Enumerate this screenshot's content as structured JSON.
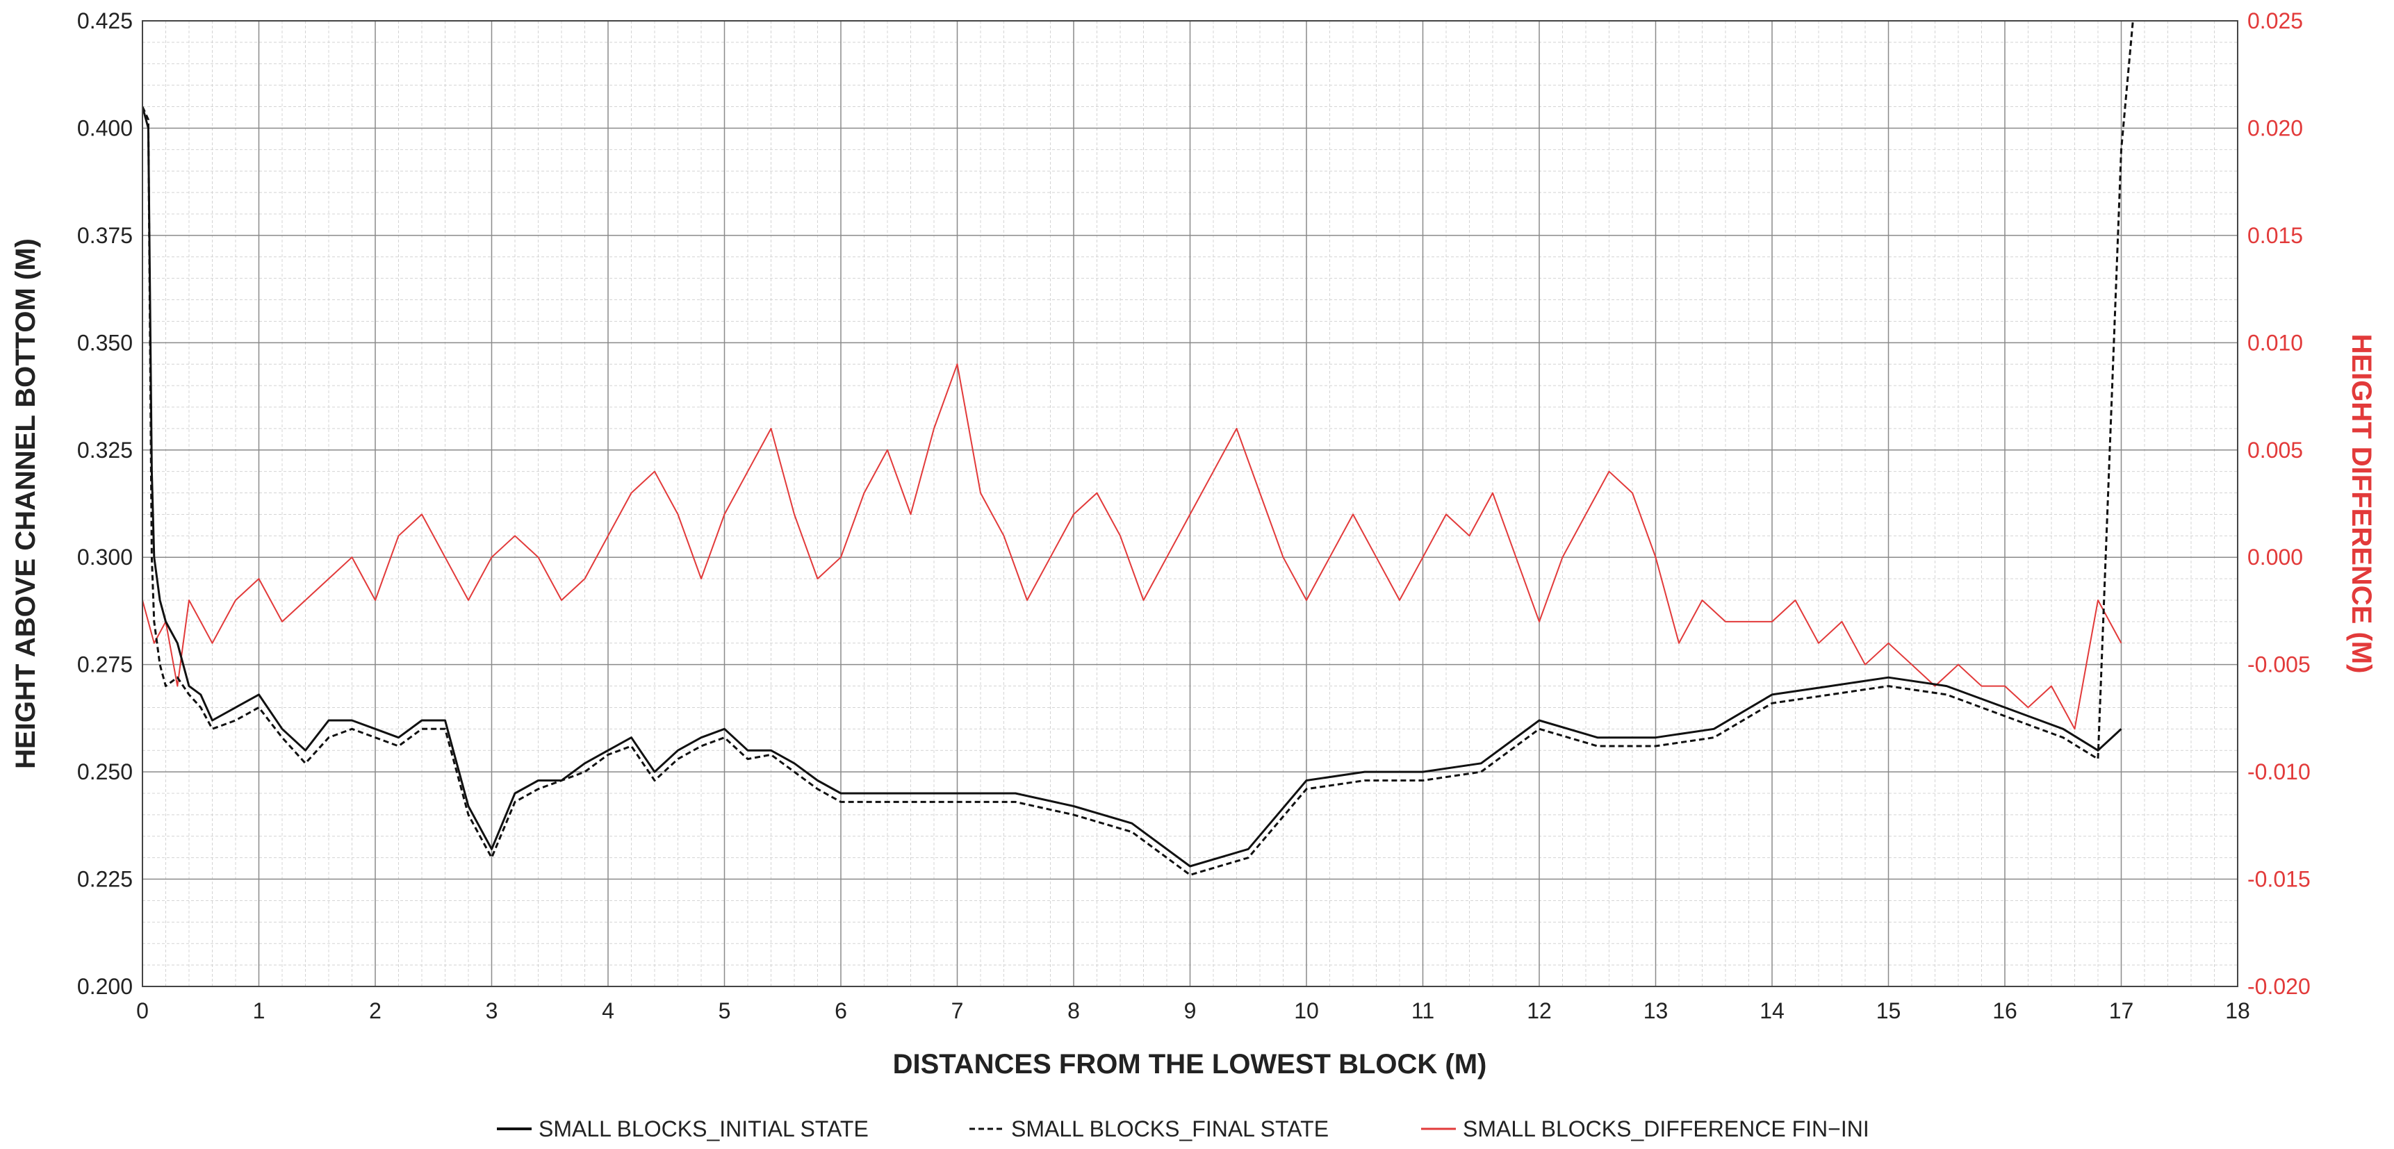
{
  "chart_data": {
    "type": "line",
    "xlabel": "DISTANCES FROM THE LOWEST BLOCK (M)",
    "ylabel": "HEIGHT ABOVE CHANNEL BOTTOM (M)",
    "y2label": "HEIGHT DIFFERENCE (M)",
    "xlim": [
      0,
      18
    ],
    "ylim": [
      0.2,
      0.425
    ],
    "y2lim": [
      -0.02,
      0.025
    ],
    "x_ticks": [
      "0",
      "1",
      "2",
      "3",
      "4",
      "5",
      "6",
      "7",
      "8",
      "9",
      "10",
      "11",
      "12",
      "13",
      "14",
      "15",
      "16",
      "17",
      "18"
    ],
    "y_ticks": [
      "0.200",
      "0.225",
      "0.250",
      "0.275",
      "0.300",
      "0.325",
      "0.350",
      "0.375",
      "0.400",
      "0.425"
    ],
    "y2_ticks": [
      "-0.020",
      "-0.015",
      "-0.010",
      "-0.005",
      "0.000",
      "0.005",
      "0.010",
      "0.015",
      "0.020",
      "0.025"
    ],
    "grid": true,
    "legend_position": "bottom",
    "series": [
      {
        "name": "SMALL BLOCKS_INITIAL STATE",
        "axis": "left",
        "style": "solid",
        "color": "#111111",
        "x": [
          0,
          0.05,
          0.08,
          0.1,
          0.15,
          0.2,
          0.3,
          0.4,
          0.5,
          0.6,
          0.8,
          1.0,
          1.2,
          1.4,
          1.6,
          1.8,
          2.0,
          2.2,
          2.4,
          2.6,
          2.8,
          3.0,
          3.2,
          3.4,
          3.6,
          3.8,
          4.0,
          4.2,
          4.4,
          4.6,
          4.8,
          5.0,
          5.2,
          5.4,
          5.6,
          5.8,
          6.0,
          6.5,
          7.0,
          7.5,
          8.0,
          8.5,
          9.0,
          9.5,
          10.0,
          10.5,
          11.0,
          11.5,
          12.0,
          12.5,
          13.0,
          13.5,
          14.0,
          14.5,
          15.0,
          15.5,
          16.0,
          16.5,
          16.8,
          17.0
        ],
        "y": [
          0.405,
          0.4,
          0.32,
          0.3,
          0.29,
          0.285,
          0.28,
          0.27,
          0.268,
          0.262,
          0.265,
          0.268,
          0.26,
          0.255,
          0.262,
          0.262,
          0.26,
          0.258,
          0.262,
          0.262,
          0.242,
          0.232,
          0.245,
          0.248,
          0.248,
          0.252,
          0.255,
          0.258,
          0.25,
          0.255,
          0.258,
          0.26,
          0.255,
          0.255,
          0.252,
          0.248,
          0.245,
          0.245,
          0.245,
          0.245,
          0.242,
          0.238,
          0.228,
          0.232,
          0.248,
          0.25,
          0.25,
          0.252,
          0.262,
          0.258,
          0.258,
          0.26,
          0.268,
          0.27,
          0.272,
          0.27,
          0.265,
          0.26,
          0.255,
          0.26
        ]
      },
      {
        "name": "SMALL BLOCKS_FINAL STATE",
        "axis": "left",
        "style": "dashed",
        "color": "#111111",
        "x": [
          0,
          0.05,
          0.08,
          0.1,
          0.15,
          0.2,
          0.3,
          0.4,
          0.5,
          0.6,
          0.8,
          1.0,
          1.2,
          1.4,
          1.6,
          1.8,
          2.0,
          2.2,
          2.4,
          2.6,
          2.8,
          3.0,
          3.2,
          3.4,
          3.6,
          3.8,
          4.0,
          4.2,
          4.4,
          4.6,
          4.8,
          5.0,
          5.2,
          5.4,
          5.6,
          5.8,
          6.0,
          6.5,
          7.0,
          7.5,
          8.0,
          8.5,
          9.0,
          9.5,
          10.0,
          10.5,
          11.0,
          11.5,
          12.0,
          12.5,
          13.0,
          13.5,
          14.0,
          14.5,
          15.0,
          15.5,
          16.0,
          16.5,
          16.8,
          17.0,
          17.1
        ],
        "y": [
          0.405,
          0.402,
          0.3,
          0.285,
          0.275,
          0.27,
          0.272,
          0.268,
          0.265,
          0.26,
          0.262,
          0.265,
          0.258,
          0.252,
          0.258,
          0.26,
          0.258,
          0.256,
          0.26,
          0.26,
          0.24,
          0.23,
          0.243,
          0.246,
          0.248,
          0.25,
          0.254,
          0.256,
          0.248,
          0.253,
          0.256,
          0.258,
          0.253,
          0.254,
          0.25,
          0.246,
          0.243,
          0.243,
          0.243,
          0.243,
          0.24,
          0.236,
          0.226,
          0.23,
          0.246,
          0.248,
          0.248,
          0.25,
          0.26,
          0.256,
          0.256,
          0.258,
          0.266,
          0.268,
          0.27,
          0.268,
          0.263,
          0.258,
          0.253,
          0.395,
          0.425
        ]
      },
      {
        "name": "SMALL BLOCKS_DIFFERENCE FIN−INI",
        "axis": "right",
        "style": "solid",
        "color": "#e23a3a",
        "x": [
          0,
          0.1,
          0.2,
          0.3,
          0.4,
          0.5,
          0.6,
          0.8,
          1.0,
          1.2,
          1.4,
          1.6,
          1.8,
          2.0,
          2.2,
          2.4,
          2.6,
          2.8,
          3.0,
          3.2,
          3.4,
          3.6,
          3.8,
          4.0,
          4.2,
          4.4,
          4.6,
          4.8,
          5.0,
          5.2,
          5.4,
          5.6,
          5.8,
          6.0,
          6.2,
          6.4,
          6.6,
          6.8,
          7.0,
          7.2,
          7.4,
          7.6,
          7.8,
          8.0,
          8.2,
          8.4,
          8.6,
          8.8,
          9.0,
          9.2,
          9.4,
          9.6,
          9.8,
          10.0,
          10.2,
          10.4,
          10.6,
          10.8,
          11.0,
          11.2,
          11.4,
          11.6,
          11.8,
          12.0,
          12.2,
          12.4,
          12.6,
          12.8,
          13.0,
          13.2,
          13.4,
          13.6,
          13.8,
          14.0,
          14.2,
          14.4,
          14.6,
          14.8,
          15.0,
          15.2,
          15.4,
          15.6,
          15.8,
          16.0,
          16.2,
          16.4,
          16.6,
          16.8,
          17.0
        ],
        "y": [
          -0.002,
          -0.004,
          -0.003,
          -0.006,
          -0.002,
          -0.003,
          -0.004,
          -0.002,
          -0.001,
          -0.003,
          -0.002,
          -0.001,
          0.0,
          -0.002,
          0.001,
          0.002,
          0.0,
          -0.002,
          0.0,
          0.001,
          0.0,
          -0.002,
          -0.001,
          0.001,
          0.003,
          0.004,
          0.002,
          -0.001,
          0.002,
          0.004,
          0.006,
          0.002,
          -0.001,
          0.0,
          0.003,
          0.005,
          0.002,
          0.006,
          0.009,
          0.003,
          0.001,
          -0.002,
          0.0,
          0.002,
          0.003,
          0.001,
          -0.002,
          0.0,
          0.002,
          0.004,
          0.006,
          0.003,
          0.0,
          -0.002,
          0.0,
          0.002,
          0.0,
          -0.002,
          0.0,
          0.002,
          0.001,
          0.003,
          0.0,
          -0.003,
          0.0,
          0.002,
          0.004,
          0.003,
          0.0,
          -0.004,
          -0.002,
          -0.003,
          -0.003,
          -0.003,
          -0.002,
          -0.004,
          -0.003,
          -0.005,
          -0.004,
          -0.005,
          -0.006,
          -0.005,
          -0.006,
          -0.006,
          -0.007,
          -0.006,
          -0.008,
          -0.002,
          -0.004
        ]
      }
    ]
  }
}
